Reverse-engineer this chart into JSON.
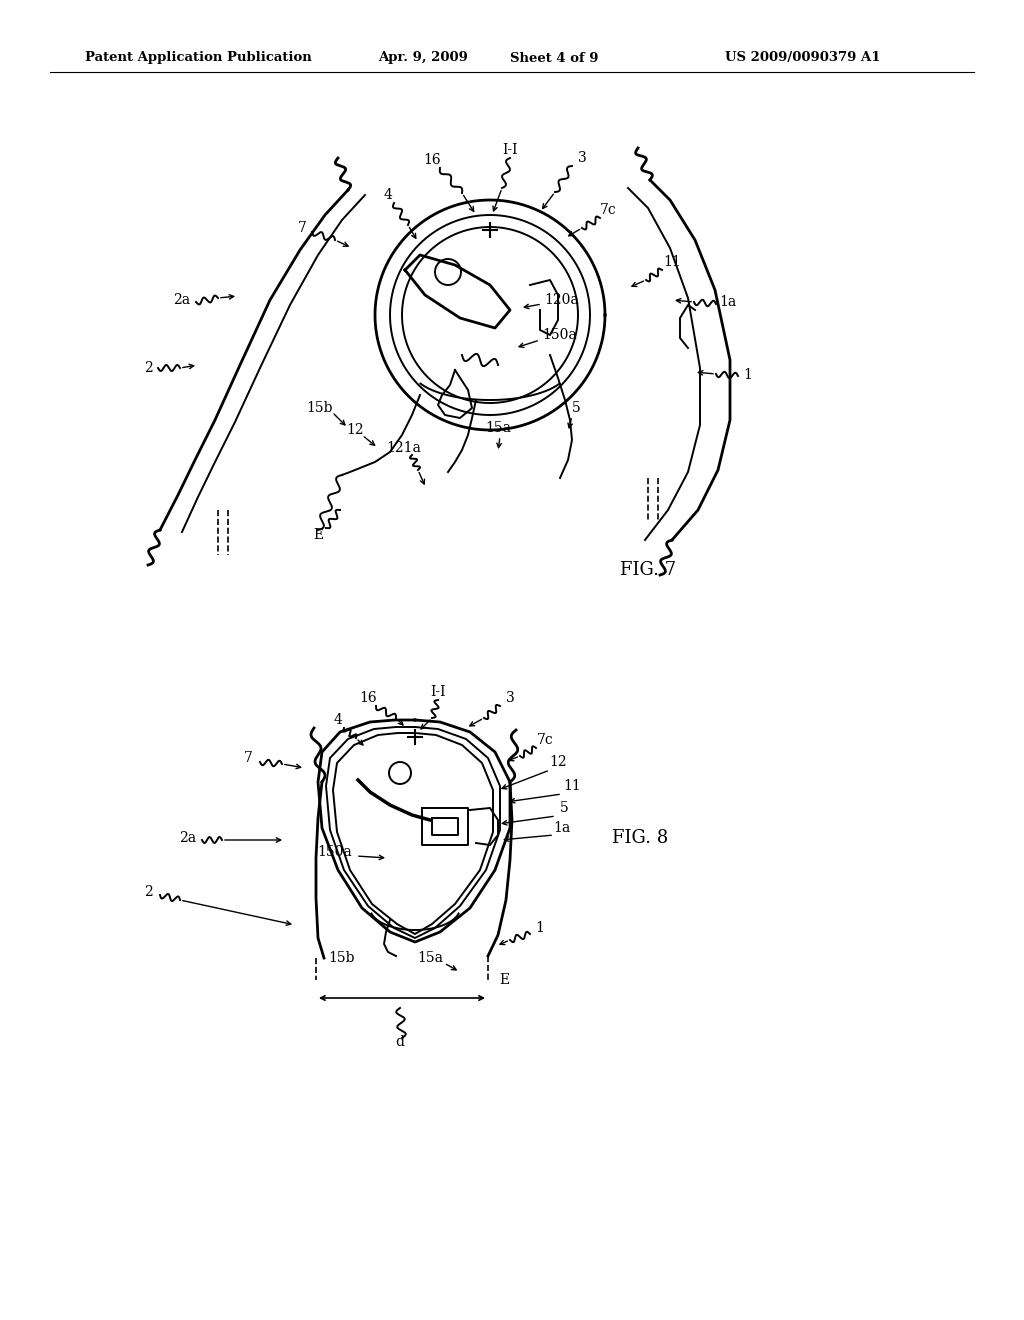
{
  "background_color": "#ffffff",
  "header_text": "Patent Application Publication",
  "header_date": "Apr. 9, 2009",
  "header_sheet": "Sheet 4 of 9",
  "header_patent": "US 2009/0090379 A1",
  "fig7_label": "FIG. 7",
  "fig8_label": "FIG. 8",
  "text_color": "#000000"
}
